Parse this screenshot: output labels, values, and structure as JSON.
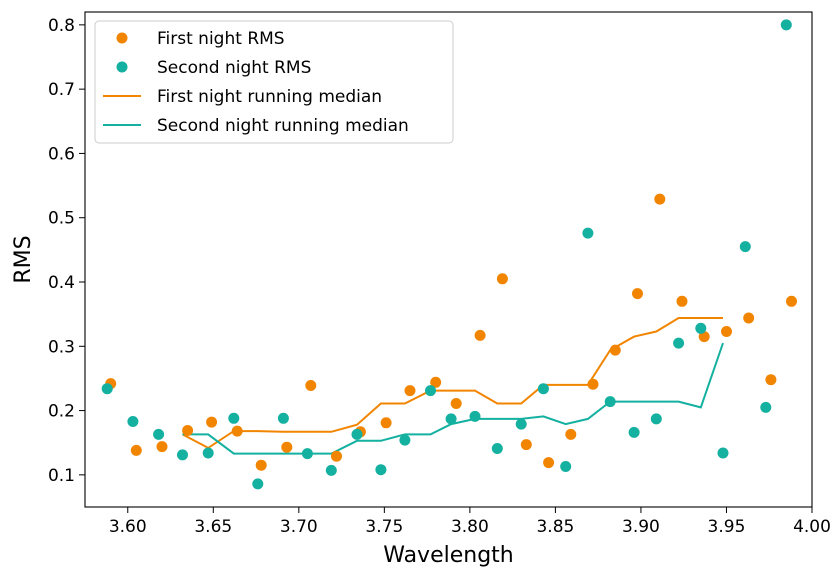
{
  "chart_data": {
    "type": "scatter",
    "title": "",
    "xlabel": "Wavelength",
    "ylabel": "RMS",
    "xlim": [
      3.575,
      4.0
    ],
    "ylim": [
      0.05,
      0.82
    ],
    "xticks": [
      3.6,
      3.65,
      3.7,
      3.75,
      3.8,
      3.85,
      3.9,
      3.95,
      4.0
    ],
    "xtick_labels": [
      "3.60",
      "3.65",
      "3.70",
      "3.75",
      "3.80",
      "3.85",
      "3.90",
      "3.95",
      "4.00"
    ],
    "yticks": [
      0.1,
      0.2,
      0.3,
      0.4,
      0.5,
      0.6,
      0.7,
      0.8
    ],
    "ytick_labels": [
      "0.1",
      "0.2",
      "0.3",
      "0.4",
      "0.5",
      "0.6",
      "0.7",
      "0.8"
    ],
    "grid": false,
    "legend_position": "top-left",
    "colors": {
      "first": "#f28500",
      "second": "#14b0a0"
    },
    "series": [
      {
        "name": "First night RMS",
        "kind": "scatter",
        "color_key": "first",
        "x": [
          3.59,
          3.605,
          3.62,
          3.635,
          3.649,
          3.664,
          3.678,
          3.693,
          3.707,
          3.722,
          3.736,
          3.751,
          3.765,
          3.78,
          3.792,
          3.806,
          3.819,
          3.833,
          3.846,
          3.859,
          3.872,
          3.885,
          3.898,
          3.911,
          3.924,
          3.937,
          3.95,
          3.963,
          3.976,
          3.988
        ],
        "y": [
          0.242,
          0.138,
          0.144,
          0.169,
          0.182,
          0.168,
          0.115,
          0.143,
          0.239,
          0.129,
          0.167,
          0.181,
          0.231,
          0.244,
          0.211,
          0.317,
          0.405,
          0.147,
          0.119,
          0.163,
          0.241,
          0.294,
          0.382,
          0.529,
          0.37,
          0.315,
          0.323,
          0.344,
          0.248,
          0.37
        ]
      },
      {
        "name": "Second night RMS",
        "kind": "scatter",
        "color_key": "second",
        "x": [
          3.588,
          3.603,
          3.618,
          3.632,
          3.647,
          3.662,
          3.676,
          3.691,
          3.705,
          3.719,
          3.734,
          3.748,
          3.762,
          3.777,
          3.789,
          3.803,
          3.816,
          3.83,
          3.843,
          3.856,
          3.869,
          3.882,
          3.896,
          3.909,
          3.922,
          3.935,
          3.948,
          3.961,
          3.973,
          3.985
        ],
        "y": [
          0.234,
          0.183,
          0.163,
          0.131,
          0.134,
          0.188,
          0.086,
          0.188,
          0.133,
          0.107,
          0.163,
          0.108,
          0.154,
          0.231,
          0.187,
          0.191,
          0.141,
          0.179,
          0.234,
          0.113,
          0.476,
          0.214,
          0.166,
          0.187,
          0.305,
          0.328,
          0.134,
          0.455,
          0.205,
          0.8
        ]
      },
      {
        "name": "First night running median",
        "kind": "line",
        "color_key": "first",
        "x": [
          3.632,
          3.647,
          3.662,
          3.676,
          3.691,
          3.705,
          3.719,
          3.734,
          3.748,
          3.762,
          3.777,
          3.789,
          3.803,
          3.816,
          3.83,
          3.843,
          3.856,
          3.869,
          3.882,
          3.896,
          3.909,
          3.922,
          3.935,
          3.948
        ],
        "y": [
          0.163,
          0.142,
          0.168,
          0.168,
          0.167,
          0.167,
          0.167,
          0.178,
          0.211,
          0.211,
          0.231,
          0.231,
          0.231,
          0.211,
          0.211,
          0.24,
          0.24,
          0.24,
          0.294,
          0.315,
          0.323,
          0.344,
          0.344,
          0.344
        ]
      },
      {
        "name": "Second night running median",
        "kind": "line",
        "color_key": "second",
        "x": [
          3.632,
          3.647,
          3.662,
          3.676,
          3.691,
          3.705,
          3.719,
          3.734,
          3.748,
          3.762,
          3.777,
          3.789,
          3.803,
          3.816,
          3.83,
          3.843,
          3.856,
          3.869,
          3.882,
          3.896,
          3.909,
          3.922,
          3.935,
          3.948
        ],
        "y": [
          0.163,
          0.163,
          0.133,
          0.133,
          0.133,
          0.133,
          0.133,
          0.153,
          0.153,
          0.163,
          0.163,
          0.179,
          0.187,
          0.187,
          0.187,
          0.191,
          0.179,
          0.187,
          0.214,
          0.214,
          0.214,
          0.214,
          0.205,
          0.305
        ]
      }
    ]
  }
}
